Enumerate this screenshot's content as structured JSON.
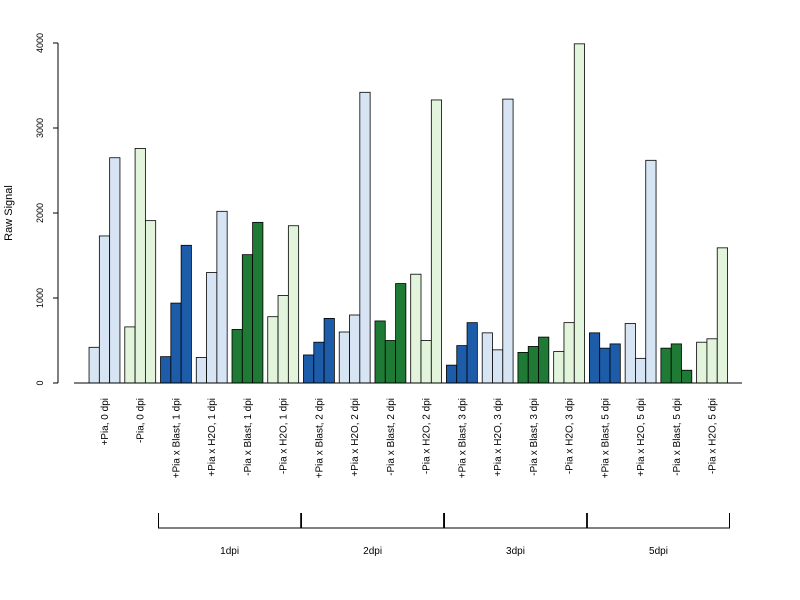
{
  "chart_data": {
    "type": "bar",
    "ylabel": "Raw Signal",
    "ylim": [
      0,
      4000
    ],
    "yticks": [
      "0",
      "1000",
      "2000",
      "3000",
      "4000"
    ],
    "grid": false,
    "legend": "none",
    "colors": {
      "light_blue": "#d6e4f4",
      "dark_blue": "#1d5ca8",
      "light_green": "#e2f5dc",
      "dark_green": "#1e7a34",
      "stroke": "#000000"
    },
    "categories": [
      {
        "label": "+Pia, 0 dpi",
        "color": "light_blue",
        "values": [
          420,
          1730,
          2650
        ]
      },
      {
        "label": "-Pia, 0 dpi",
        "color": "light_green",
        "values": [
          660,
          2760,
          1910
        ]
      },
      {
        "label": "+Pia x Blast, 1 dpi",
        "color": "dark_blue",
        "values": [
          310,
          940,
          1620
        ]
      },
      {
        "label": "+Pia x H2O, 1 dpi",
        "color": "light_blue",
        "values": [
          300,
          1300,
          2020
        ]
      },
      {
        "label": "-Pia x Blast, 1 dpi",
        "color": "dark_green",
        "values": [
          630,
          1510,
          1890
        ]
      },
      {
        "label": "-Pia x H2O, 1 dpi",
        "color": "light_green",
        "values": [
          780,
          1030,
          1850
        ]
      },
      {
        "label": "+Pia x Blast, 2 dpi",
        "color": "dark_blue",
        "values": [
          330,
          480,
          760
        ]
      },
      {
        "label": "+Pia x H2O, 2 dpi",
        "color": "light_blue",
        "values": [
          600,
          800,
          3420
        ]
      },
      {
        "label": "-Pia x Blast, 2 dpi",
        "color": "dark_green",
        "values": [
          730,
          500,
          1170
        ]
      },
      {
        "label": "-Pia x H2O, 2 dpi",
        "color": "light_green",
        "values": [
          1280,
          500,
          3330
        ]
      },
      {
        "label": "+Pia x Blast, 3 dpi",
        "color": "dark_blue",
        "values": [
          210,
          440,
          710
        ]
      },
      {
        "label": "+Pia x H2O, 3 dpi",
        "color": "light_blue",
        "values": [
          590,
          390,
          3340
        ]
      },
      {
        "label": "-Pia x Blast, 3 dpi",
        "color": "dark_green",
        "values": [
          360,
          430,
          540
        ]
      },
      {
        "label": "-Pia x H2O, 3 dpi",
        "color": "light_green",
        "values": [
          370,
          710,
          3990
        ]
      },
      {
        "label": "+Pia x Blast, 5 dpi",
        "color": "dark_blue",
        "values": [
          590,
          410,
          460
        ]
      },
      {
        "label": "+Pia x H2O, 5 dpi",
        "color": "light_blue",
        "values": [
          700,
          290,
          2620
        ]
      },
      {
        "label": "-Pia x Blast, 5 dpi",
        "color": "dark_green",
        "values": [
          410,
          460,
          150
        ]
      },
      {
        "label": "-Pia x H2O, 5 dpi",
        "color": "light_green",
        "values": [
          480,
          520,
          1590
        ]
      }
    ],
    "groups": [
      {
        "label": "1dpi",
        "from": 2,
        "to": 5
      },
      {
        "label": "2dpi",
        "from": 6,
        "to": 9
      },
      {
        "label": "3dpi",
        "from": 10,
        "to": 13
      },
      {
        "label": "5dpi",
        "from": 14,
        "to": 17
      }
    ]
  }
}
